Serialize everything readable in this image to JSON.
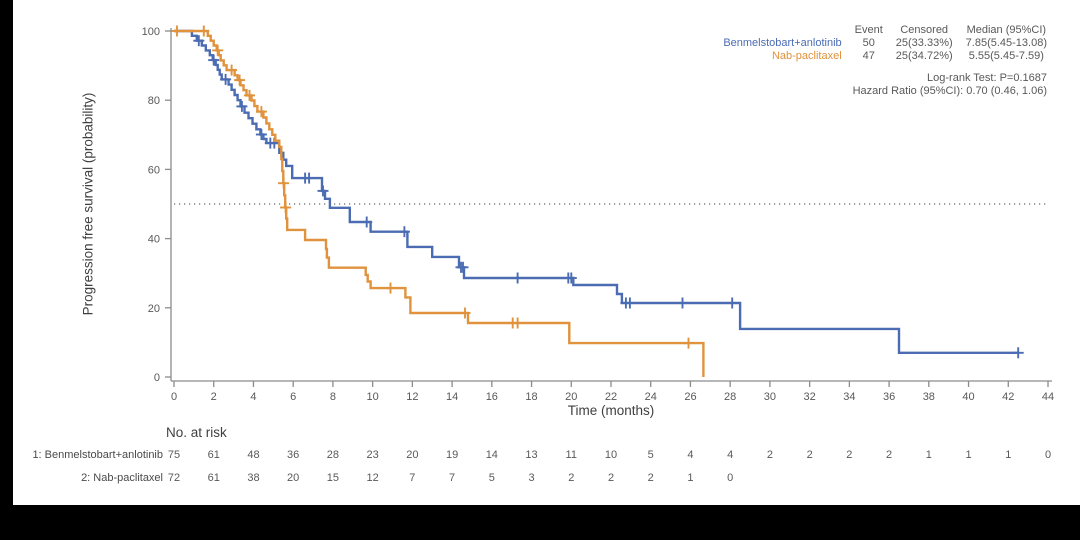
{
  "figure": {
    "background": "#ffffff",
    "frame_color": "#000000",
    "axis_color": "#8c8c8c",
    "tick_text_color": "#595959"
  },
  "chart_data": {
    "type": "line",
    "subtype": "kaplan-meier-step-survival",
    "title": "",
    "xlabel": "Time (months)",
    "ylabel": "Progression free survival (probability)",
    "xlim": [
      0,
      44
    ],
    "ylim": [
      0,
      100
    ],
    "xticks": [
      0,
      2,
      4,
      6,
      8,
      10,
      12,
      14,
      16,
      18,
      20,
      22,
      24,
      26,
      28,
      30,
      32,
      34,
      36,
      38,
      40,
      42,
      44
    ],
    "yticks": [
      0,
      20,
      40,
      60,
      80,
      100
    ],
    "grid": false,
    "reference_line": {
      "y": 50,
      "style": "dotted",
      "color": "#666666"
    },
    "series": [
      {
        "name": "Benmelstobart+anlotinib",
        "color": "#4b6cb3",
        "steps": [
          [
            0,
            100
          ],
          [
            0.9,
            98.6
          ],
          [
            1.15,
            97.2
          ],
          [
            1.4,
            95.8
          ],
          [
            1.6,
            94.4
          ],
          [
            1.8,
            93
          ],
          [
            1.95,
            91.6
          ],
          [
            2.1,
            90.2
          ],
          [
            2.2,
            88.8
          ],
          [
            2.3,
            87.4
          ],
          [
            2.4,
            86
          ],
          [
            2.75,
            84.5
          ],
          [
            2.9,
            83
          ],
          [
            3.05,
            81.5
          ],
          [
            3.2,
            80
          ],
          [
            3.35,
            78.2
          ],
          [
            3.55,
            76.4
          ],
          [
            3.75,
            74.8
          ],
          [
            3.95,
            73.2
          ],
          [
            4.15,
            71.6
          ],
          [
            4.35,
            70.1
          ],
          [
            4.5,
            68.8
          ],
          [
            4.65,
            67.6
          ],
          [
            5.3,
            64.8
          ],
          [
            5.5,
            62.8
          ],
          [
            5.65,
            61
          ],
          [
            5.95,
            57.5
          ],
          [
            7.45,
            53.8
          ],
          [
            7.6,
            51.5
          ],
          [
            7.85,
            48.9
          ],
          [
            8.85,
            44.8
          ],
          [
            9.9,
            42
          ],
          [
            11.75,
            37.6
          ],
          [
            13,
            34.7
          ],
          [
            14.35,
            31.7
          ],
          [
            14.6,
            28.6
          ],
          [
            20.1,
            26.6
          ],
          [
            22.3,
            24
          ],
          [
            22.55,
            21.4
          ],
          [
            28.5,
            13.9
          ],
          [
            36.5,
            7
          ],
          [
            42.5,
            7
          ]
        ],
        "censors": [
          [
            1.25,
            97.2
          ],
          [
            2.0,
            91.6
          ],
          [
            2.6,
            86
          ],
          [
            3.42,
            78.2
          ],
          [
            4.4,
            70.1
          ],
          [
            4.85,
            67.6
          ],
          [
            5.05,
            67.6
          ],
          [
            6.6,
            57.5
          ],
          [
            6.8,
            57.5
          ],
          [
            7.5,
            53.8
          ],
          [
            9.7,
            44.8
          ],
          [
            11.6,
            42
          ],
          [
            14.45,
            31.7
          ],
          [
            14.55,
            31.7
          ],
          [
            17.3,
            28.6
          ],
          [
            19.85,
            28.6
          ],
          [
            20.0,
            28.6
          ],
          [
            22.75,
            21.4
          ],
          [
            22.95,
            21.4
          ],
          [
            25.6,
            21.4
          ],
          [
            28.1,
            21.4
          ],
          [
            42.5,
            7
          ]
        ]
      },
      {
        "name": "Nab-paclitaxel",
        "color": "#e0923c",
        "steps": [
          [
            0,
            100
          ],
          [
            1.7,
            98.6
          ],
          [
            1.85,
            97.2
          ],
          [
            2.0,
            95.8
          ],
          [
            2.15,
            94.4
          ],
          [
            2.25,
            93
          ],
          [
            2.35,
            91.5
          ],
          [
            2.5,
            90.1
          ],
          [
            2.65,
            88.7
          ],
          [
            3.05,
            87.2
          ],
          [
            3.2,
            85.8
          ],
          [
            3.35,
            84.3
          ],
          [
            3.5,
            82.9
          ],
          [
            3.65,
            81.4
          ],
          [
            3.9,
            79.9
          ],
          [
            4.05,
            78.3
          ],
          [
            4.2,
            76.7
          ],
          [
            4.5,
            75
          ],
          [
            4.65,
            73.3
          ],
          [
            4.8,
            71.6
          ],
          [
            4.95,
            70
          ],
          [
            5.1,
            68.3
          ],
          [
            5.3,
            66.5
          ],
          [
            5.4,
            63
          ],
          [
            5.45,
            59.5
          ],
          [
            5.5,
            56
          ],
          [
            5.55,
            52.5
          ],
          [
            5.6,
            49
          ],
          [
            5.65,
            45.8
          ],
          [
            5.7,
            42.5
          ],
          [
            6.6,
            39.6
          ],
          [
            7.65,
            37
          ],
          [
            7.7,
            34.5
          ],
          [
            7.8,
            31.6
          ],
          [
            9.65,
            29.5
          ],
          [
            9.75,
            27.6
          ],
          [
            9.9,
            25.7
          ],
          [
            11.65,
            23
          ],
          [
            11.9,
            18.5
          ],
          [
            14.8,
            15.6
          ],
          [
            19.9,
            9.8
          ],
          [
            26.65,
            0
          ]
        ],
        "censors": [
          [
            0.15,
            100
          ],
          [
            1.5,
            100
          ],
          [
            2.2,
            94.4
          ],
          [
            2.9,
            88.7
          ],
          [
            3.3,
            85.8
          ],
          [
            3.8,
            81.4
          ],
          [
            4.4,
            76.7
          ],
          [
            5.52,
            56
          ],
          [
            5.62,
            49
          ],
          [
            10.9,
            25.7
          ],
          [
            14.65,
            18.5
          ],
          [
            17.05,
            15.6
          ],
          [
            17.3,
            15.6
          ],
          [
            25.9,
            9.8
          ]
        ]
      }
    ]
  },
  "legend_stats": {
    "columns": [
      "Event",
      "Censored",
      "Median (95%CI)"
    ],
    "rows": [
      {
        "label": "Benmelstobart+anlotinib",
        "color": "#4b6cb3",
        "event": "50",
        "censored": "25(33.33%)",
        "median": "7.85(5.45-13.08)"
      },
      {
        "label": "Nab-paclitaxel",
        "color": "#e0923c",
        "event": "47",
        "censored": "25(34.72%)",
        "median": "5.55(5.45-7.59)"
      }
    ],
    "logrank": "Log-rank Test: P=0.1687",
    "hazard_ratio": "Hazard Ratio (95%CI): 0.70 (0.46, 1.06)"
  },
  "risk_table": {
    "title": "No. at risk",
    "rows": [
      {
        "label": "1: Benmelstobart+anlotinib",
        "counts": [
          75,
          61,
          48,
          36,
          28,
          23,
          20,
          19,
          14,
          13,
          11,
          10,
          5,
          4,
          4,
          2,
          2,
          2,
          2,
          1,
          1,
          1,
          0
        ]
      },
      {
        "label": "2: Nab-paclitaxel",
        "counts": [
          72,
          61,
          38,
          20,
          15,
          12,
          7,
          7,
          5,
          3,
          2,
          2,
          2,
          1,
          0
        ]
      }
    ]
  }
}
